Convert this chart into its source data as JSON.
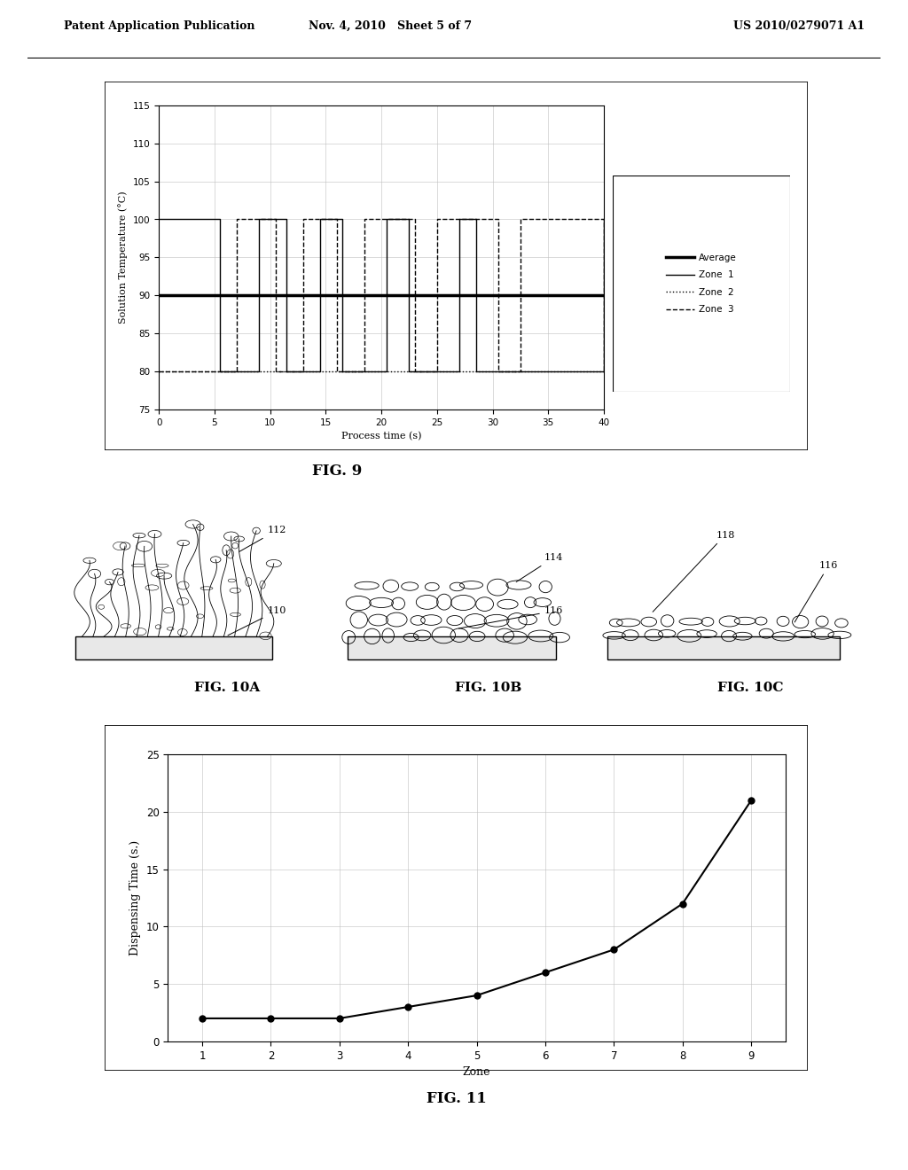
{
  "header_left": "Patent Application Publication",
  "header_mid": "Nov. 4, 2010   Sheet 5 of 7",
  "header_right": "US 2010/0279071 A1",
  "fig9": {
    "xlabel": "Process time (s)",
    "ylabel": "Solution Temperature (°C)",
    "xlim": [
      0,
      40
    ],
    "ylim": [
      75,
      115
    ],
    "yticks": [
      75,
      80,
      85,
      90,
      95,
      100,
      105,
      110,
      115
    ],
    "xticks": [
      0,
      5,
      10,
      15,
      20,
      25,
      30,
      35,
      40
    ],
    "average_y": 90,
    "zone2_y": 80,
    "zone1_transitions": [
      5.5,
      9.0,
      11.5,
      14.5,
      16.5,
      20.5,
      22.5,
      27.0,
      28.5,
      40
    ],
    "zone3_transitions": [
      7.0,
      10.5,
      13.0,
      16.0,
      18.5,
      23.0,
      25.0,
      30.5,
      32.5,
      40
    ],
    "legend_labels": [
      "Average",
      "Zone  1",
      "Zone  2",
      "Zone  3"
    ]
  },
  "fig11": {
    "xlabel": "Zone",
    "ylabel": "Dispensing Time (s.)",
    "xlim": [
      0.5,
      9.5
    ],
    "ylim": [
      0,
      25
    ],
    "yticks": [
      0,
      5,
      10,
      15,
      20,
      25
    ],
    "xticks": [
      1,
      2,
      3,
      4,
      5,
      6,
      7,
      8,
      9
    ],
    "x": [
      1,
      2,
      3,
      4,
      5,
      6,
      7,
      8,
      9
    ],
    "y": [
      2.0,
      2.0,
      2.0,
      3.0,
      4.0,
      6.0,
      8.0,
      12.0,
      21.0
    ]
  }
}
